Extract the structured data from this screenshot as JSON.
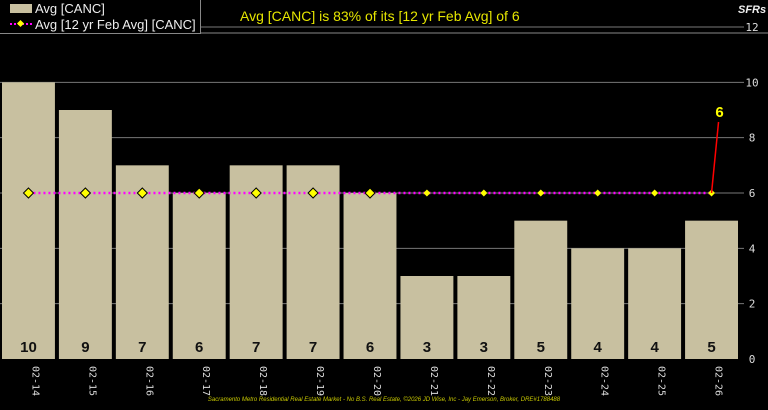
{
  "chart_data": {
    "type": "bar",
    "title": "Avg [CANC] is 83% of its [12 yr Feb Avg] of 6",
    "ylabel": "SFRs",
    "ylim": [
      0,
      12
    ],
    "yticks": [
      0,
      2,
      4,
      6,
      8,
      10,
      12
    ],
    "grid": true,
    "legend_position": "top-left",
    "categories": [
      "02-14",
      "02-15",
      "02-16",
      "02-17",
      "02-18",
      "02-19",
      "02-20",
      "02-21",
      "02-22",
      "02-23",
      "02-24",
      "02-25",
      "02-26"
    ],
    "series": [
      {
        "name": "Avg [CANC]",
        "type": "bar",
        "color": "#c8c0a0",
        "values": [
          10,
          9,
          7,
          6,
          7,
          7,
          6,
          3,
          3,
          5,
          4,
          4,
          5
        ]
      },
      {
        "name": "Avg [12 yr Feb Avg] [CANC]",
        "type": "line",
        "color": "#ff00ff",
        "marker_color": "#ffff00",
        "values": [
          6,
          6,
          6,
          6,
          6,
          6,
          6,
          6,
          6,
          6,
          6,
          6,
          6
        ]
      }
    ],
    "annotation": {
      "text": "6",
      "color": "#ffff00",
      "line_color": "#ff0000"
    }
  },
  "footer": "Sacramento Metro Residential Real Estate Market - No B.S. Real Estate, ©2026 JD Wise, Inc - Jay Emerson, Broker, DRE#1788488"
}
